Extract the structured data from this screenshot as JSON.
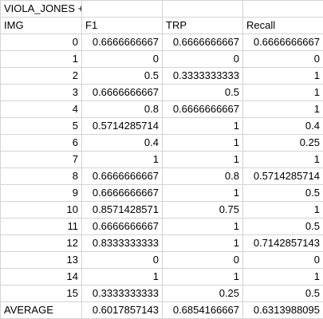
{
  "sheet": {
    "title": "VIOLA_JONES + HOUGH LINES + HOUGH CIRCLES",
    "headers": [
      "IMG",
      "F1",
      "TRP",
      "Recall"
    ],
    "rows": [
      [
        "0",
        "0.6666666667",
        "0.6666666667",
        "0.6666666667"
      ],
      [
        "1",
        "0",
        "0",
        "0"
      ],
      [
        "2",
        "0.5",
        "0.3333333333",
        "1"
      ],
      [
        "3",
        "0.6666666667",
        "0.5",
        "1"
      ],
      [
        "4",
        "0.8",
        "0.6666666667",
        "1"
      ],
      [
        "5",
        "0.5714285714",
        "1",
        "0.4"
      ],
      [
        "6",
        "0.4",
        "1",
        "0.25"
      ],
      [
        "7",
        "1",
        "1",
        "1"
      ],
      [
        "8",
        "0.6666666667",
        "0.8",
        "0.5714285714"
      ],
      [
        "9",
        "0.6666666667",
        "1",
        "0.5"
      ],
      [
        "10",
        "0.8571428571",
        "0.75",
        "1"
      ],
      [
        "11",
        "0.6666666667",
        "1",
        "0.5"
      ],
      [
        "12",
        "0.8333333333",
        "1",
        "0.7142857143"
      ],
      [
        "13",
        "0",
        "0",
        "0"
      ],
      [
        "14",
        "1",
        "1",
        "1"
      ],
      [
        "15",
        "0.3333333333",
        "0.25",
        "0.5"
      ]
    ],
    "average": {
      "label": "AVERAGE",
      "f1": "0.6017857143",
      "trp": "0.6854166667",
      "recall": "0.6313988095"
    }
  }
}
